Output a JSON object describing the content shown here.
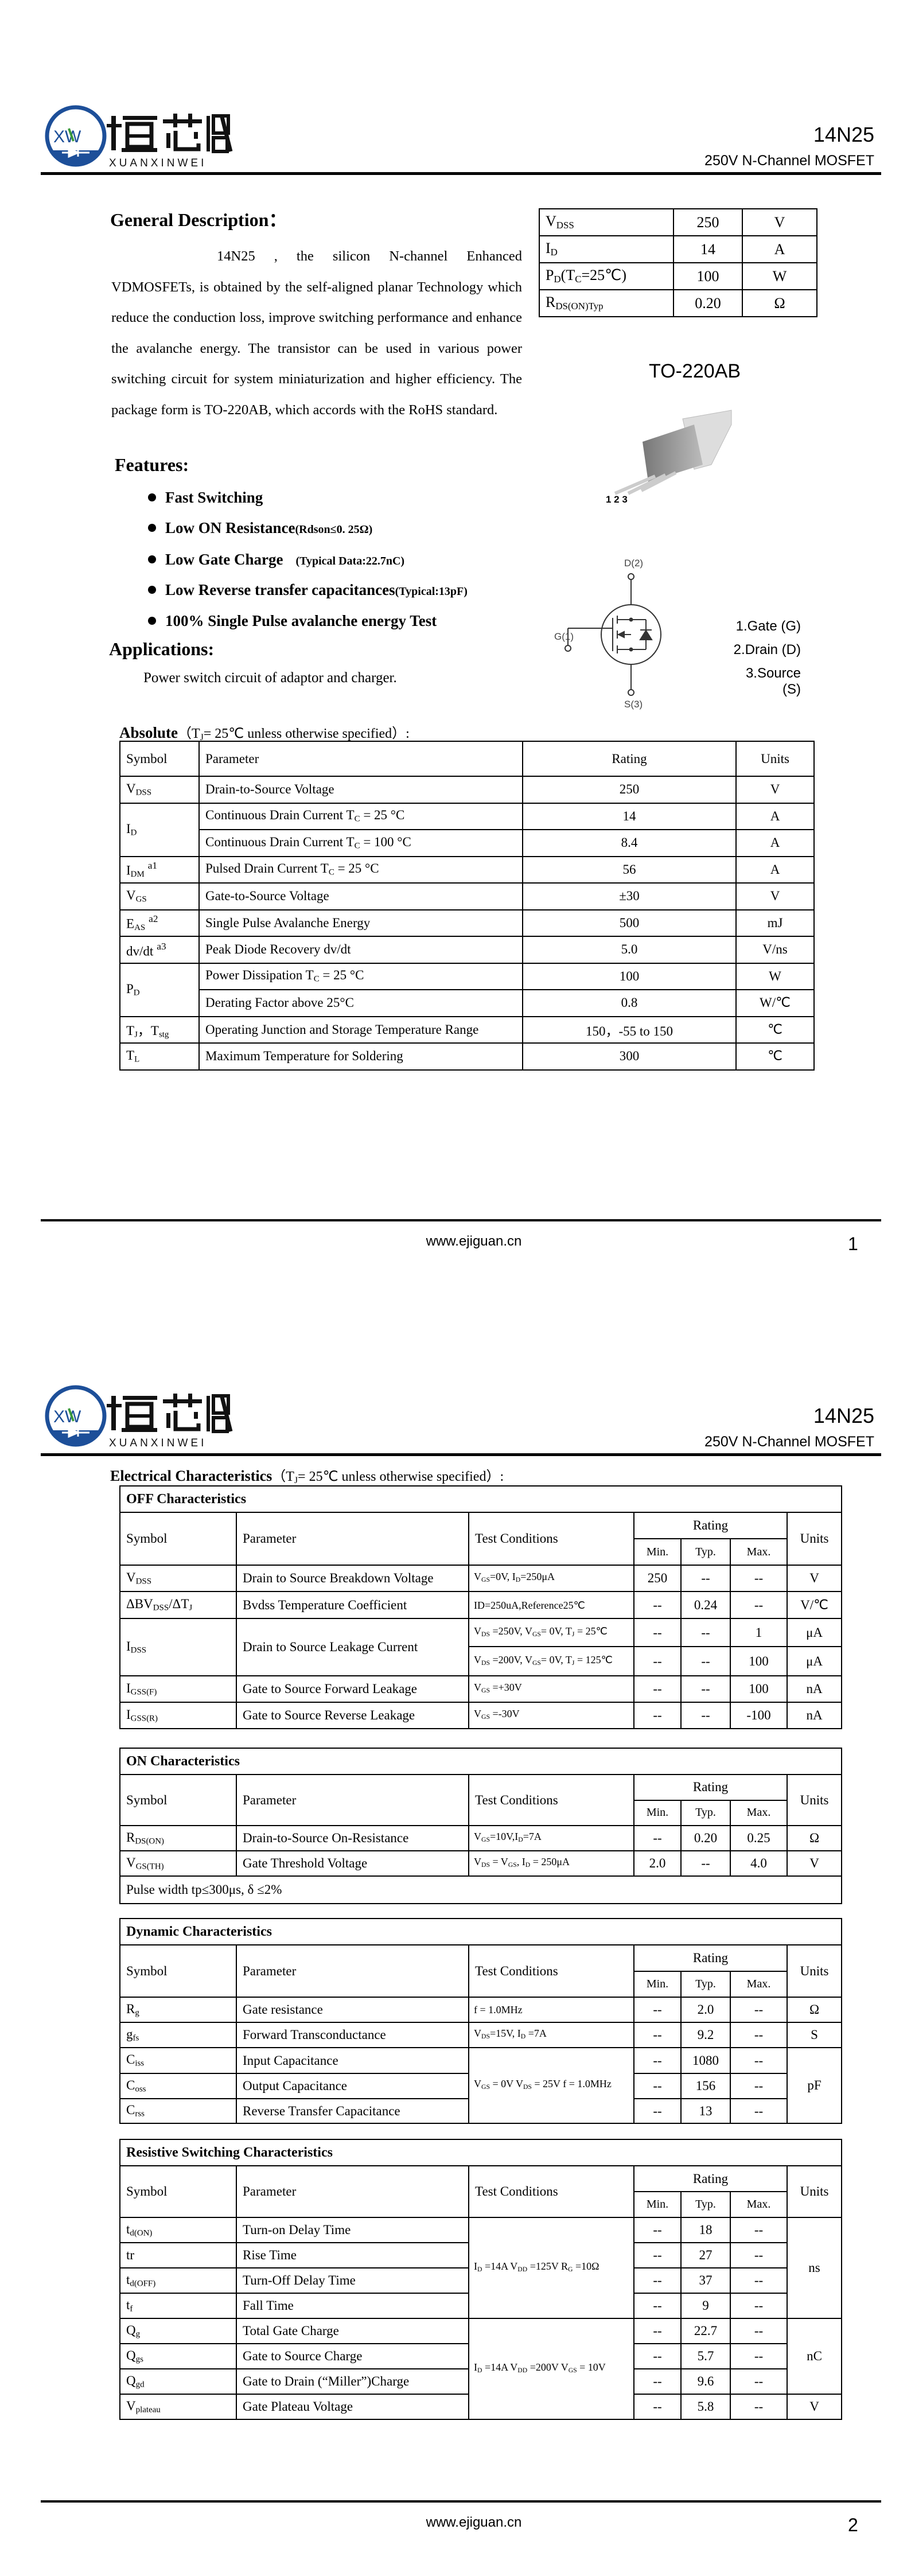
{
  "header": {
    "logo_mark": "XW",
    "logo_cn": "烜芯微",
    "logo_en": "XUANXINWEI",
    "part_number": "14N25",
    "subtitle": "250V N-Channel MOSFET",
    "colors": {
      "logo_blue": "#1d4f99",
      "logo_green": "#3a9a3a"
    }
  },
  "footer": {
    "url": "www.ejiguan.cn",
    "pages": [
      "1",
      "2"
    ]
  },
  "page1": {
    "general_title": "General Description：",
    "description": "14N25 , the silicon N-channel Enhanced VDMOSFETs, is obtained by the self-aligned planar Technology which reduce the conduction loss, improve switching performance and enhance the avalanche energy. The transistor can be used in various power switching circuit for system miniaturization and higher efficiency. The package form is TO-220AB, which accords with the RoHS standard.",
    "spec_table": [
      {
        "symbol": "V_{DSS}",
        "value": "250",
        "unit": "V"
      },
      {
        "symbol": "I_{D}",
        "value": "14",
        "unit": "A"
      },
      {
        "symbol": "P_{D}(T_{C}=25℃)",
        "value": "100",
        "unit": "W"
      },
      {
        "symbol": "R_{DS(ON)Typ}",
        "value": "0.20",
        "unit": "Ω"
      }
    ],
    "package_name": "TO-220AB",
    "package_pins": "1 2 3",
    "features_title": "Features:",
    "features": [
      {
        "main": "Fast Switching",
        "note": ""
      },
      {
        "main": "Low ON Resistance",
        "note": "(Rdson≤0. 25Ω)"
      },
      {
        "main": "Low Gate Charge",
        "note": "(Typical Data:22.7nC)"
      },
      {
        "main": "Low Reverse transfer capacitances",
        "note": "(Typical:13pF)"
      },
      {
        "main": "100% Single Pulse avalanche energy Test",
        "note": ""
      }
    ],
    "applications_title": "Applications:",
    "applications_text": "Power switch circuit of adaptor and charger.",
    "symbol_labels": {
      "drain": "D(2)",
      "gate": "G(1)",
      "source": "S(3)"
    },
    "pin_legend": [
      "1.Gate (G)",
      "2.Drain (D)",
      "3.Source (S)"
    ],
    "absolute": {
      "title_bold": "Absolute",
      "title_rest": "（T_{J}= 25℃  unless otherwise specified）:",
      "headers": [
        "Symbol",
        "Parameter",
        "Rating",
        "Units"
      ],
      "groups": [
        {
          "symbol": "V_{DSS}",
          "items": [
            {
              "param": "Drain-to-Source Voltage",
              "rating": "250",
              "unit": "V"
            }
          ]
        },
        {
          "symbol": "I_{D}",
          "items": [
            {
              "param": "Continuous Drain Current T_{C} = 25 °C",
              "rating": "14",
              "unit": "A"
            },
            {
              "param": "Continuous Drain Current T_{C} = 100 °C",
              "rating": "8.4",
              "unit": "A"
            }
          ]
        },
        {
          "symbol": "I_{DM}^{a1}",
          "items": [
            {
              "param": "Pulsed Drain Current T_{C} = 25 °C",
              "rating": "56",
              "unit": "A"
            }
          ]
        },
        {
          "symbol": "V_{GS}",
          "items": [
            {
              "param": "Gate-to-Source Voltage",
              "rating": "±30",
              "unit": "V"
            }
          ]
        },
        {
          "symbol": "E_{AS}^{a2}",
          "items": [
            {
              "param": "Single Pulse Avalanche Energy",
              "rating": "500",
              "unit": "mJ"
            }
          ]
        },
        {
          "symbol": "dv/dt^{a3}",
          "items": [
            {
              "param": "Peak Diode Recovery dv/dt",
              "rating": "5.0",
              "unit": "V/ns"
            }
          ]
        },
        {
          "symbol": "P_{D}",
          "items": [
            {
              "param": "Power Dissipation T_{C} = 25 °C",
              "rating": "100",
              "unit": "W"
            },
            {
              "param": "Derating Factor above 25°C",
              "rating": "0.8",
              "unit": "W/℃"
            }
          ]
        },
        {
          "symbol": "T_{J}，T_{stg}",
          "items": [
            {
              "param": "Operating Junction and Storage Temperature Range",
              "rating": "150，-55 to 150",
              "unit": "℃"
            }
          ]
        },
        {
          "symbol": "T_{L}",
          "items": [
            {
              "param": "Maximum Temperature for Soldering",
              "rating": "300",
              "unit": "℃"
            }
          ]
        }
      ]
    }
  },
  "page2": {
    "title_bold": "Electrical Characteristics",
    "title_rest": "（T_{J}= 25℃  unless otherwise specified）:",
    "tables": [
      {
        "title": "OFF Characteristics",
        "headers": [
          "Symbol",
          "Parameter",
          "Test Conditions",
          "Rating",
          "Min.",
          "Typ.",
          "Max.",
          "Units"
        ],
        "rows": [
          {
            "sym": "V_{DSS}",
            "param": "Drain to Source Breakdown Voltage",
            "cond": "V_{GS}=0V, I_{D}=250μA",
            "min": "250",
            "typ": "--",
            "max": "--",
            "unit": "V"
          },
          {
            "sym": "ΔBV_{DSS}/ΔT_{J}",
            "param": "Bvdss Temperature Coefficient",
            "cond": "ID=250uA,Reference25℃",
            "min": "--",
            "typ": "0.24",
            "max": "--",
            "unit": "V/℃"
          },
          {
            "sym": "I_{DSS}",
            "param": "Drain to Source Leakage Current",
            "cond": "V_{DS} =250V, V_{GS}= 0V, T_{J} = 25℃",
            "min": "--",
            "typ": "--",
            "max": "1",
            "unit": "μA"
          },
          {
            "cond": "V_{DS} =200V, V_{GS}= 0V, T_{J} = 125℃",
            "min": "--",
            "typ": "--",
            "max": "100",
            "unit": "μA"
          },
          {
            "sym": "I_{GSS(F)}",
            "param": "Gate to Source Forward Leakage",
            "cond": "V_{GS} =+30V",
            "min": "--",
            "typ": "--",
            "max": "100",
            "unit": "nA"
          },
          {
            "sym": "I_{GSS(R)}",
            "param": "Gate to Source Reverse Leakage",
            "cond": "V_{GS} =-30V",
            "min": "--",
            "typ": "--",
            "max": "-100",
            "unit": "nA"
          }
        ]
      },
      {
        "title": "ON Characteristics",
        "headers": [
          "Symbol",
          "Parameter",
          "Test Conditions",
          "Rating",
          "Min.",
          "Typ.",
          "Max.",
          "Units"
        ],
        "rows": [
          {
            "sym": "R_{DS(ON)}",
            "param": "Drain-to-Source On-Resistance",
            "cond": "V_{GS}=10V,I_{D}=7A",
            "min": "--",
            "typ": "0.20",
            "max": "0.25",
            "unit": "Ω"
          },
          {
            "sym": "V_{GS(TH)}",
            "param": "Gate Threshold Voltage",
            "cond": "V_{DS} = V_{GS}, I_{D} = 250μA",
            "min": "2.0",
            "typ": "--",
            "max": "4.0",
            "unit": "V"
          }
        ],
        "note": "Pulse width tp≤300μs, δ ≤2%"
      },
      {
        "title": "Dynamic Characteristics",
        "headers": [
          "Symbol",
          "Parameter",
          "Test Conditions",
          "Rating",
          "Min.",
          "Typ.",
          "Max.",
          "Units"
        ],
        "rows": [
          {
            "sym": "R_{g}",
            "param": "Gate resistance",
            "cond": "f = 1.0MHz",
            "min": "--",
            "typ": "2.0",
            "max": "--",
            "unit": "Ω"
          },
          {
            "sym": "g_{fs}",
            "param": "Forward Transconductance",
            "cond": "V_{DS}=15V, I_{D} =7A",
            "min": "--",
            "typ": "9.2",
            "max": "--",
            "unit": "S"
          },
          {
            "sym": "C_{iss}",
            "param": "Input Capacitance",
            "cond": "V_{GS} = 0V V_{DS} = 25V f = 1.0MHz",
            "min": "--",
            "typ": "1080",
            "max": "--",
            "unit": "pF"
          },
          {
            "sym": "C_{oss}",
            "param": "Output Capacitance",
            "min": "--",
            "typ": "156",
            "max": "--"
          },
          {
            "sym": "C_{rss}",
            "param": "Reverse Transfer Capacitance",
            "min": "--",
            "typ": "13",
            "max": "--"
          }
        ]
      },
      {
        "title": "Resistive Switching Characteristics",
        "headers": [
          "Symbol",
          "Parameter",
          "Test Conditions",
          "Rating",
          "Min.",
          "Typ.",
          "Max.",
          "Units"
        ],
        "rows": [
          {
            "sym": "t_{d(ON)}",
            "param": "Turn-on Delay Time",
            "cond": "I_{D} =14A   V_{DD} =125V R_{G} =10Ω",
            "min": "--",
            "typ": "18",
            "max": "--",
            "unit": "ns"
          },
          {
            "sym": "tr",
            "param": "Rise Time",
            "min": "--",
            "typ": "27",
            "max": "--"
          },
          {
            "sym": "t_{d(OFF)}",
            "param": "Turn-Off Delay Time",
            "min": "--",
            "typ": "37",
            "max": "--"
          },
          {
            "sym": "t_{f}",
            "param": "Fall Time",
            "min": "--",
            "typ": "9",
            "max": "--"
          },
          {
            "sym": "Q_{g}",
            "param": "Total Gate Charge",
            "cond": "I_{D} =14A   V_{DD} =200V V_{GS} = 10V",
            "min": "--",
            "typ": "22.7",
            "max": "--",
            "unit": "nC"
          },
          {
            "sym": "Q_{gs}",
            "param": "Gate to Source Charge",
            "min": "--",
            "typ": "5.7",
            "max": "--"
          },
          {
            "sym": "Q_{gd}",
            "param": "Gate to Drain (“Miller”)Charge",
            "min": "--",
            "typ": "9.6",
            "max": "--"
          },
          {
            "sym": "V_{plateau}",
            "param": "Gate Plateau Voltage",
            "min": "--",
            "typ": "5.8",
            "max": "--",
            "unit": "V"
          }
        ]
      }
    ]
  }
}
